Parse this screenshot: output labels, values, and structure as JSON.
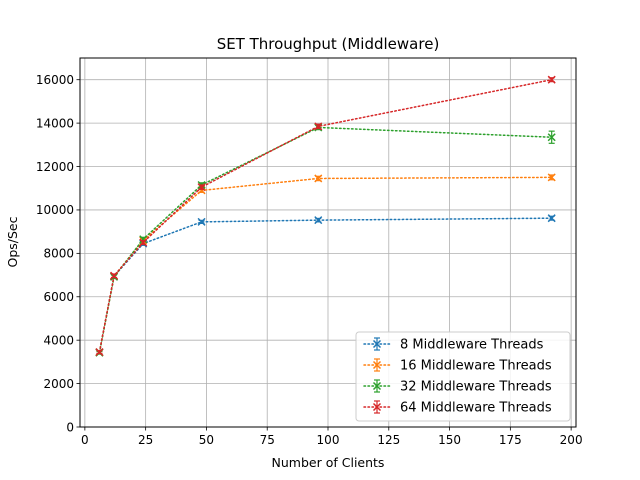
{
  "chart_data": {
    "type": "line",
    "title": "SET Throughput (Middleware)",
    "xlabel": "Number of Clients",
    "ylabel": "Ops/Sec",
    "xlim": [
      -2,
      202
    ],
    "ylim": [
      0,
      17000
    ],
    "xticks": [
      0,
      25,
      50,
      75,
      100,
      125,
      150,
      175,
      200
    ],
    "yticks": [
      0,
      2000,
      4000,
      6000,
      8000,
      10000,
      12000,
      14000,
      16000
    ],
    "grid": true,
    "legend_position": "lower-right",
    "marker": "x",
    "line_style": "dotted",
    "x": [
      6,
      12,
      24,
      48,
      96,
      192
    ],
    "series": [
      {
        "name": "8 Middleware Threads",
        "color": "#1f77b4",
        "values": [
          3450,
          6950,
          8450,
          9450,
          9530,
          9620
        ],
        "errors": [
          60,
          80,
          80,
          70,
          80,
          90
        ]
      },
      {
        "name": "16 Middleware Threads",
        "color": "#ff7f0e",
        "values": [
          3450,
          6950,
          8600,
          10900,
          11450,
          11500
        ],
        "errors": [
          60,
          80,
          90,
          90,
          100,
          110
        ]
      },
      {
        "name": "32 Middleware Threads",
        "color": "#2ca02c",
        "values": [
          3420,
          6920,
          8650,
          11150,
          13800,
          13350
        ],
        "errors": [
          60,
          80,
          90,
          100,
          100,
          280
        ]
      },
      {
        "name": "64 Middleware Threads",
        "color": "#d62728",
        "values": [
          3450,
          6970,
          8500,
          11050,
          13850,
          16000
        ],
        "errors": [
          60,
          80,
          90,
          100,
          100,
          90
        ]
      }
    ]
  }
}
